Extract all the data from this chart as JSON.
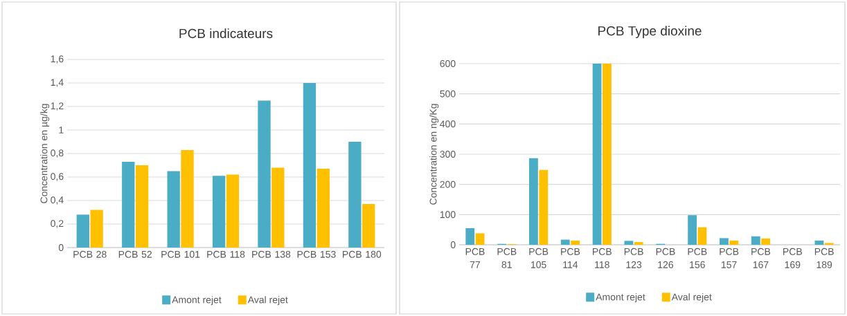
{
  "chart_data": [
    {
      "type": "bar",
      "title": "PCB indicateurs",
      "ylabel": "Concentration en µg/kg",
      "categories": [
        "PCB 28",
        "PCB 52",
        "PCB 101",
        "PCB 118",
        "PCB 138",
        "PCB 153",
        "PCB 180"
      ],
      "series": [
        {
          "name": "Amont rejet",
          "color": "#4bacc6",
          "values": [
            0.28,
            0.73,
            0.65,
            0.61,
            1.25,
            1.4,
            0.9
          ]
        },
        {
          "name": "Aval rejet",
          "color": "#ffc000",
          "values": [
            0.32,
            0.7,
            0.83,
            0.62,
            0.68,
            0.67,
            0.37
          ]
        }
      ],
      "ylim": [
        0,
        1.6
      ],
      "yticks": [
        0,
        {
          "value": 0.2,
          "label": "0,2"
        },
        {
          "value": 0.4,
          "label": "0,4"
        },
        {
          "value": 0.6,
          "label": "0,6"
        },
        {
          "value": 0.8,
          "label": "0,8"
        },
        1,
        {
          "value": 1.2,
          "label": "1,2"
        },
        {
          "value": 1.4,
          "label": "1,4"
        },
        {
          "value": 1.6,
          "label": "1,6"
        }
      ],
      "grid": "y",
      "legend": "bottom"
    },
    {
      "type": "bar",
      "title": "PCB Type dioxine",
      "ylabel": "Concentration en ng/Kg",
      "categories": [
        "PCB 77",
        "PCB 81",
        "PCB 105",
        "PCB 114",
        "PCB 118",
        "PCB 123",
        "PCB 126",
        "PCB 156",
        "PCB 157",
        "PCB 167",
        "PCB 169",
        "PCB 189"
      ],
      "series": [
        {
          "name": "Amont rejet",
          "color": "#4bacc6",
          "values": [
            55,
            3,
            287,
            17,
            600,
            13,
            3,
            98,
            22,
            28,
            0,
            14
          ]
        },
        {
          "name": "Aval rejet",
          "color": "#ffc000",
          "values": [
            38,
            2,
            248,
            14,
            600,
            9,
            0,
            58,
            14,
            21,
            0,
            6
          ]
        }
      ],
      "ylim": [
        0,
        600
      ],
      "yticks": [
        0,
        100,
        200,
        300,
        400,
        500,
        600
      ],
      "grid": "y",
      "legend": "bottom"
    }
  ]
}
